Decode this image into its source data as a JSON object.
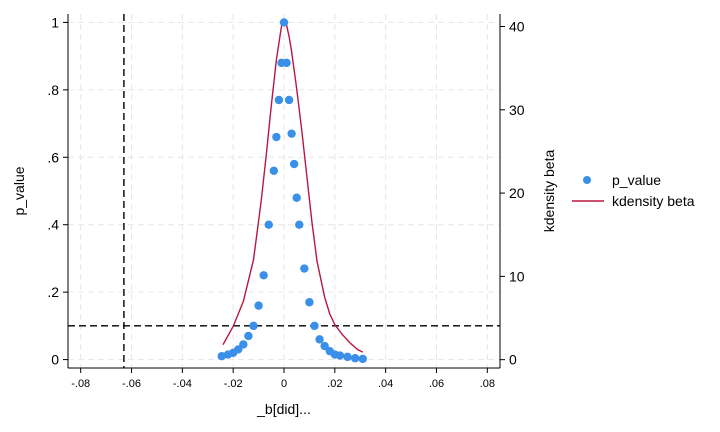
{
  "chart_data": {
    "type": "scatter",
    "xlabel": "_b[did]...",
    "ylabel_left": "p_value",
    "ylabel_right": "kdensity beta",
    "xlim": [
      -0.085,
      0.085
    ],
    "ylim_left": [
      -0.025,
      1.025
    ],
    "ylim_right": [
      -1.0,
      41.5
    ],
    "x_ticks": [
      -0.08,
      -0.06,
      -0.04,
      -0.02,
      0,
      0.02,
      0.04,
      0.06,
      0.08
    ],
    "x_tick_labels": [
      "-.08",
      "-.06",
      "-.04",
      "-.02",
      "0",
      ".02",
      ".04",
      ".06",
      ".08"
    ],
    "y_left_ticks": [
      0,
      0.2,
      0.4,
      0.6,
      0.8,
      1
    ],
    "y_left_tick_labels": [
      "0",
      ".2",
      ".4",
      ".6",
      ".8",
      "1"
    ],
    "y_right_ticks": [
      0,
      10,
      20,
      30,
      40
    ],
    "y_right_tick_labels": [
      "0",
      "10",
      "20",
      "30",
      "40"
    ],
    "grid": true,
    "legend_position": "right",
    "reference_lines": {
      "vertical_x": -0.063,
      "horizontal_y": 0.1
    },
    "series": [
      {
        "name": "p_value",
        "kind": "scatter",
        "axis": "left",
        "color": "#3a8fe8",
        "points": [
          [
            -0.0245,
            0.01
          ],
          [
            -0.022,
            0.015
          ],
          [
            -0.02,
            0.02
          ],
          [
            -0.018,
            0.03
          ],
          [
            -0.016,
            0.045
          ],
          [
            -0.014,
            0.07
          ],
          [
            -0.012,
            0.1
          ],
          [
            -0.01,
            0.16
          ],
          [
            -0.008,
            0.25
          ],
          [
            -0.006,
            0.4
          ],
          [
            -0.004,
            0.56
          ],
          [
            -0.003,
            0.66
          ],
          [
            -0.002,
            0.77
          ],
          [
            -0.001,
            0.88
          ],
          [
            0.0,
            1.0
          ],
          [
            0.001,
            0.88
          ],
          [
            0.002,
            0.77
          ],
          [
            0.003,
            0.67
          ],
          [
            0.004,
            0.58
          ],
          [
            0.005,
            0.48
          ],
          [
            0.006,
            0.4
          ],
          [
            0.008,
            0.27
          ],
          [
            0.01,
            0.17
          ],
          [
            0.012,
            0.1
          ],
          [
            0.014,
            0.06
          ],
          [
            0.016,
            0.04
          ],
          [
            0.018,
            0.025
          ],
          [
            0.02,
            0.015
          ],
          [
            0.022,
            0.012
          ],
          [
            0.025,
            0.008
          ],
          [
            0.028,
            0.004
          ],
          [
            0.031,
            0.002
          ]
        ]
      },
      {
        "name": "kdensity beta",
        "kind": "line",
        "axis": "right",
        "color": "#b8173f",
        "points": [
          [
            -0.024,
            1.8
          ],
          [
            -0.02,
            4.0
          ],
          [
            -0.016,
            7.0
          ],
          [
            -0.012,
            12.0
          ],
          [
            -0.009,
            19.0
          ],
          [
            -0.007,
            24.5
          ],
          [
            -0.005,
            30.5
          ],
          [
            -0.003,
            36.0
          ],
          [
            -0.001,
            40.0
          ],
          [
            0.0,
            40.8
          ],
          [
            0.001,
            40.2
          ],
          [
            0.002,
            38.8
          ],
          [
            0.003,
            37.0
          ],
          [
            0.005,
            32.5
          ],
          [
            0.007,
            27.5
          ],
          [
            0.009,
            22.0
          ],
          [
            0.011,
            16.5
          ],
          [
            0.013,
            11.8
          ],
          [
            0.016,
            7.5
          ],
          [
            0.018,
            5.5
          ],
          [
            0.02,
            4.2
          ],
          [
            0.023,
            3.0
          ],
          [
            0.026,
            2.0
          ],
          [
            0.029,
            1.2
          ],
          [
            0.031,
            0.9
          ]
        ]
      }
    ]
  }
}
